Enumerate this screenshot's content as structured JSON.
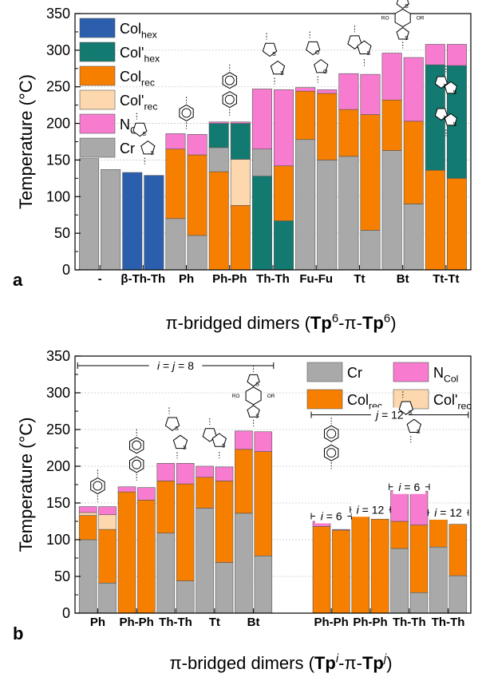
{
  "colors": {
    "Col_hex": "#2b5fae",
    "Col_prime_hex": "#127a70",
    "Col_rec": "#f77f00",
    "Col_prime_rec": "#fdd7ad",
    "N_Col": "#f77ccf",
    "Cr": "#a9a9a9"
  },
  "chart_data": [
    {
      "type": "bar",
      "subtype": "stacked",
      "panel_label": "a",
      "ylabel": "Temperature (°C)",
      "ylim": [
        0,
        350
      ],
      "yticks": [
        0,
        50,
        100,
        150,
        200,
        250,
        300,
        350
      ],
      "grid": true,
      "xlabel_parts": [
        {
          "t": "π-bridged dimers (",
          "b": false,
          "s": null
        },
        {
          "t": "Tp",
          "b": true,
          "s": null
        },
        {
          "t": "6",
          "b": false,
          "s": "sup"
        },
        {
          "t": "-π-",
          "b": false,
          "s": null
        },
        {
          "t": "Tp",
          "b": true,
          "s": null
        },
        {
          "t": "6",
          "b": false,
          "s": "sup"
        },
        {
          "t": ")",
          "b": false,
          "s": null
        }
      ],
      "legend": {
        "position": "top-left",
        "entries": [
          {
            "key": "Col_hex",
            "parts": [
              {
                "t": "Col",
                "s": null
              },
              {
                "t": "hex",
                "s": "sub"
              }
            ]
          },
          {
            "key": "Col_prime_hex",
            "parts": [
              {
                "t": "Col'",
                "s": null
              },
              {
                "t": "hex",
                "s": "sub"
              }
            ]
          },
          {
            "key": "Col_rec",
            "parts": [
              {
                "t": "Col",
                "s": null
              },
              {
                "t": "rec",
                "s": "sub"
              }
            ]
          },
          {
            "key": "Col_prime_rec",
            "parts": [
              {
                "t": "Col'",
                "s": null
              },
              {
                "t": "rec",
                "s": "sub"
              }
            ]
          },
          {
            "key": "N_Col",
            "parts": [
              {
                "t": "N",
                "s": null
              },
              {
                "t": "Col",
                "s": "sub"
              }
            ]
          },
          {
            "key": "Cr",
            "parts": [
              {
                "t": "Cr",
                "s": null
              }
            ]
          }
        ]
      },
      "groups": [
        {
          "label": "-",
          "bars": [
            [
              {
                "phase": "Cr",
                "top": 152
              }
            ],
            [
              {
                "phase": "Cr",
                "top": 137
              }
            ]
          ]
        },
        {
          "label": "β-Th-Th",
          "bars": [
            [
              {
                "phase": "Col_hex",
                "top": 133
              }
            ],
            [
              {
                "phase": "Col_hex",
                "top": 129
              }
            ]
          ]
        },
        {
          "label": "Ph",
          "bars": [
            [
              {
                "phase": "Cr",
                "top": 70
              },
              {
                "phase": "Col_rec",
                "top": 165
              },
              {
                "phase": "N_Col",
                "top": 186
              }
            ],
            [
              {
                "phase": "Cr",
                "top": 47
              },
              {
                "phase": "Col_rec",
                "top": 157
              },
              {
                "phase": "N_Col",
                "top": 185
              }
            ]
          ]
        },
        {
          "label": "Ph-Ph",
          "bars": [
            [
              {
                "phase": "Col_rec",
                "top": 134
              },
              {
                "phase": "Cr",
                "top": 167
              },
              {
                "phase": "Col_prime_hex",
                "top": 200
              },
              {
                "phase": "N_Col",
                "top": 202
              }
            ],
            [
              {
                "phase": "Col_rec",
                "top": 88
              },
              {
                "phase": "Col_prime_rec",
                "top": 151
              },
              {
                "phase": "Col_prime_hex",
                "top": 200
              },
              {
                "phase": "N_Col",
                "top": 202
              }
            ]
          ]
        },
        {
          "label": "Th-Th",
          "bars": [
            [
              {
                "phase": "Col_prime_hex",
                "top": 128
              },
              {
                "phase": "Cr",
                "top": 165
              },
              {
                "phase": "N_Col",
                "top": 247
              }
            ],
            [
              {
                "phase": "Col_prime_hex",
                "top": 67
              },
              {
                "phase": "Col_rec",
                "top": 142
              },
              {
                "phase": "N_Col",
                "top": 246
              }
            ]
          ]
        },
        {
          "label": "Fu-Fu",
          "bars": [
            [
              {
                "phase": "Cr",
                "top": 178
              },
              {
                "phase": "Col_rec",
                "top": 244
              },
              {
                "phase": "N_Col",
                "top": 249
              }
            ],
            [
              {
                "phase": "Cr",
                "top": 150
              },
              {
                "phase": "Col_rec",
                "top": 241
              },
              {
                "phase": "N_Col",
                "top": 246
              }
            ]
          ]
        },
        {
          "label": "Tt",
          "bars": [
            [
              {
                "phase": "Cr",
                "top": 155
              },
              {
                "phase": "Col_rec",
                "top": 219
              },
              {
                "phase": "N_Col",
                "top": 268
              }
            ],
            [
              {
                "phase": "Cr",
                "top": 54
              },
              {
                "phase": "Col_rec",
                "top": 212
              },
              {
                "phase": "N_Col",
                "top": 267
              }
            ]
          ]
        },
        {
          "label": "Bt",
          "bars": [
            [
              {
                "phase": "Cr",
                "top": 163
              },
              {
                "phase": "Col_rec",
                "top": 232
              },
              {
                "phase": "N_Col",
                "top": 296
              }
            ],
            [
              {
                "phase": "Cr",
                "top": 90
              },
              {
                "phase": "Col_rec",
                "top": 203
              },
              {
                "phase": "N_Col",
                "top": 290
              }
            ]
          ]
        },
        {
          "label": "Tt-Tt",
          "bars": [
            [
              {
                "phase": "Col_rec",
                "top": 136
              },
              {
                "phase": "Col_prime_hex",
                "top": 280
              },
              {
                "phase": "N_Col",
                "top": 308
              }
            ],
            [
              {
                "phase": "Col_rec",
                "top": 125
              },
              {
                "phase": "Col_prime_hex",
                "top": 279
              },
              {
                "phase": "N_Col",
                "top": 308
              }
            ]
          ]
        }
      ]
    },
    {
      "type": "bar",
      "subtype": "stacked",
      "panel_label": "b",
      "ylabel": "Temperature (°C)",
      "ylim": [
        0,
        350
      ],
      "yticks": [
        0,
        50,
        100,
        150,
        200,
        250,
        300,
        350
      ],
      "grid": true,
      "xlabel_parts": [
        {
          "t": "π-bridged dimers (",
          "b": false,
          "s": null
        },
        {
          "t": "Tp",
          "b": true,
          "s": null
        },
        {
          "t": "i",
          "b": false,
          "s": "sup",
          "i": true
        },
        {
          "t": "-π-",
          "b": false,
          "s": null
        },
        {
          "t": "Tp",
          "b": true,
          "s": null
        },
        {
          "t": "j",
          "b": false,
          "s": "sup",
          "i": true
        },
        {
          "t": ")",
          "b": false,
          "s": null
        }
      ],
      "legend": {
        "position": "top-right",
        "entries": [
          {
            "key": "Cr",
            "parts": [
              {
                "t": "Cr",
                "s": null
              }
            ]
          },
          {
            "key": "N_Col",
            "parts": [
              {
                "t": "N",
                "s": null
              },
              {
                "t": "Col",
                "s": "sub"
              }
            ]
          },
          {
            "key": "Col_rec",
            "parts": [
              {
                "t": "Col",
                "s": null
              },
              {
                "t": "rec",
                "s": "sub"
              }
            ]
          },
          {
            "key": "Col_prime_rec",
            "parts": [
              {
                "t": "Col'",
                "s": null
              },
              {
                "t": "rec",
                "s": "sub"
              }
            ]
          }
        ]
      },
      "annotations": [
        {
          "id": "ij8",
          "parts": [
            {
              "t": "i",
              "i": true
            },
            {
              "t": " = ",
              "i": false
            },
            {
              "t": "j",
              "i": true
            },
            {
              "t": " = 8",
              "i": false
            }
          ],
          "y": 337,
          "from_group": 0,
          "to_group": 4
        },
        {
          "id": "j12",
          "parts": [
            {
              "t": "j",
              "i": true
            },
            {
              "t": " = 12",
              "i": false
            }
          ],
          "y": 270,
          "from_group": 5,
          "to_group": 8
        },
        {
          "id": "i6a",
          "parts": [
            {
              "t": "i",
              "i": true
            },
            {
              "t": " = 6",
              "i": false
            }
          ],
          "y": 132,
          "from_group": 5,
          "to_group": 5
        },
        {
          "id": "i12a",
          "parts": [
            {
              "t": "i",
              "i": true
            },
            {
              "t": " = 12",
              "i": false
            }
          ],
          "y": 141,
          "from_group": 6,
          "to_group": 6
        },
        {
          "id": "i6b",
          "parts": [
            {
              "t": "i",
              "i": true
            },
            {
              "t": " = 6",
              "i": false
            }
          ],
          "y": 172,
          "from_group": 7,
          "to_group": 7
        },
        {
          "id": "i12b",
          "parts": [
            {
              "t": "i",
              "i": true
            },
            {
              "t": " = 12",
              "i": false
            }
          ],
          "y": 137,
          "from_group": 8,
          "to_group": 8
        }
      ],
      "groups": [
        {
          "label": "Ph",
          "bars": [
            [
              {
                "phase": "Cr",
                "top": 100
              },
              {
                "phase": "Col_rec",
                "top": 133
              },
              {
                "phase": "Col_prime_rec",
                "top": 137
              },
              {
                "phase": "N_Col",
                "top": 145
              }
            ],
            [
              {
                "phase": "Cr",
                "top": 41
              },
              {
                "phase": "Col_rec",
                "top": 114
              },
              {
                "phase": "Col_prime_rec",
                "top": 134
              },
              {
                "phase": "N_Col",
                "top": 145
              }
            ]
          ]
        },
        {
          "label": "Ph-Ph",
          "bars": [
            [
              {
                "phase": "Col_rec",
                "top": 165
              },
              {
                "phase": "N_Col",
                "top": 172
              }
            ],
            [
              {
                "phase": "Col_rec",
                "top": 154
              },
              {
                "phase": "N_Col",
                "top": 171
              }
            ]
          ]
        },
        {
          "label": "Th-Th",
          "bars": [
            [
              {
                "phase": "Cr",
                "top": 109
              },
              {
                "phase": "Col_rec",
                "top": 180
              },
              {
                "phase": "N_Col",
                "top": 204
              }
            ],
            [
              {
                "phase": "Cr",
                "top": 44
              },
              {
                "phase": "Col_rec",
                "top": 176
              },
              {
                "phase": "N_Col",
                "top": 204
              }
            ]
          ]
        },
        {
          "label": "Tt",
          "bars": [
            [
              {
                "phase": "Cr",
                "top": 143
              },
              {
                "phase": "Col_rec",
                "top": 185
              },
              {
                "phase": "N_Col",
                "top": 200
              }
            ],
            [
              {
                "phase": "Cr",
                "top": 69
              },
              {
                "phase": "Col_rec",
                "top": 180
              },
              {
                "phase": "N_Col",
                "top": 199
              }
            ]
          ]
        },
        {
          "label": "Bt",
          "bars": [
            [
              {
                "phase": "Cr",
                "top": 136
              },
              {
                "phase": "Col_rec",
                "top": 223
              },
              {
                "phase": "N_Col",
                "top": 248
              }
            ],
            [
              {
                "phase": "Cr",
                "top": 78
              },
              {
                "phase": "Col_rec",
                "top": 220
              },
              {
                "phase": "N_Col",
                "top": 247
              }
            ]
          ]
        },
        {
          "label": "Ph-Ph",
          "bars": [
            [
              {
                "phase": "Col_rec",
                "top": 118
              },
              {
                "phase": "N_Col",
                "top": 125
              }
            ],
            [
              {
                "phase": "Col_rec",
                "top": 113
              },
              {
                "phase": "N_Col",
                "top": 114
              }
            ]
          ]
        },
        {
          "label": "Ph-Ph",
          "bars": [
            [
              {
                "phase": "Col_rec",
                "top": 136
              }
            ],
            [
              {
                "phase": "Col_rec",
                "top": 128
              }
            ]
          ]
        },
        {
          "label": "Th-Th",
          "bars": [
            [
              {
                "phase": "Cr",
                "top": 88
              },
              {
                "phase": "Col_rec",
                "top": 125
              },
              {
                "phase": "N_Col",
                "top": 167
              }
            ],
            [
              {
                "phase": "Cr",
                "top": 28
              },
              {
                "phase": "Col_rec",
                "top": 120
              },
              {
                "phase": "N_Col",
                "top": 166
              }
            ]
          ]
        },
        {
          "label": "Th-Th",
          "bars": [
            [
              {
                "phase": "Cr",
                "top": 90
              },
              {
                "phase": "Col_rec",
                "top": 132
              }
            ],
            [
              {
                "phase": "Cr",
                "top": 51
              },
              {
                "phase": "Col_rec",
                "top": 121
              }
            ]
          ]
        }
      ]
    }
  ],
  "molecule_icons_a": [
    {
      "group": 1,
      "icon": "bithiophene-beta-icon"
    },
    {
      "group": 2,
      "icon": "phenylene-icon"
    },
    {
      "group": 3,
      "icon": "biphenylene-icon"
    },
    {
      "group": 4,
      "icon": "bithiophene-icon"
    },
    {
      "group": 5,
      "icon": "bifuran-icon"
    },
    {
      "group": 6,
      "icon": "thienothiophene-icon"
    },
    {
      "group": 7,
      "icon": "benzodithiophene-icon"
    },
    {
      "group": 8,
      "icon": "bithienothiophene-icon"
    }
  ],
  "molecule_icons_b": [
    {
      "group": 0,
      "icon": "phenylene-icon"
    },
    {
      "group": 1,
      "icon": "biphenylene-icon"
    },
    {
      "group": 2,
      "icon": "bithiophene-icon"
    },
    {
      "group": 3,
      "icon": "thienothiophene-icon"
    },
    {
      "group": 4,
      "icon": "benzodithiophene-icon"
    },
    {
      "group": 5,
      "icon": "biphenylene-icon"
    },
    {
      "group": 7,
      "icon": "bithiophene-icon"
    }
  ]
}
